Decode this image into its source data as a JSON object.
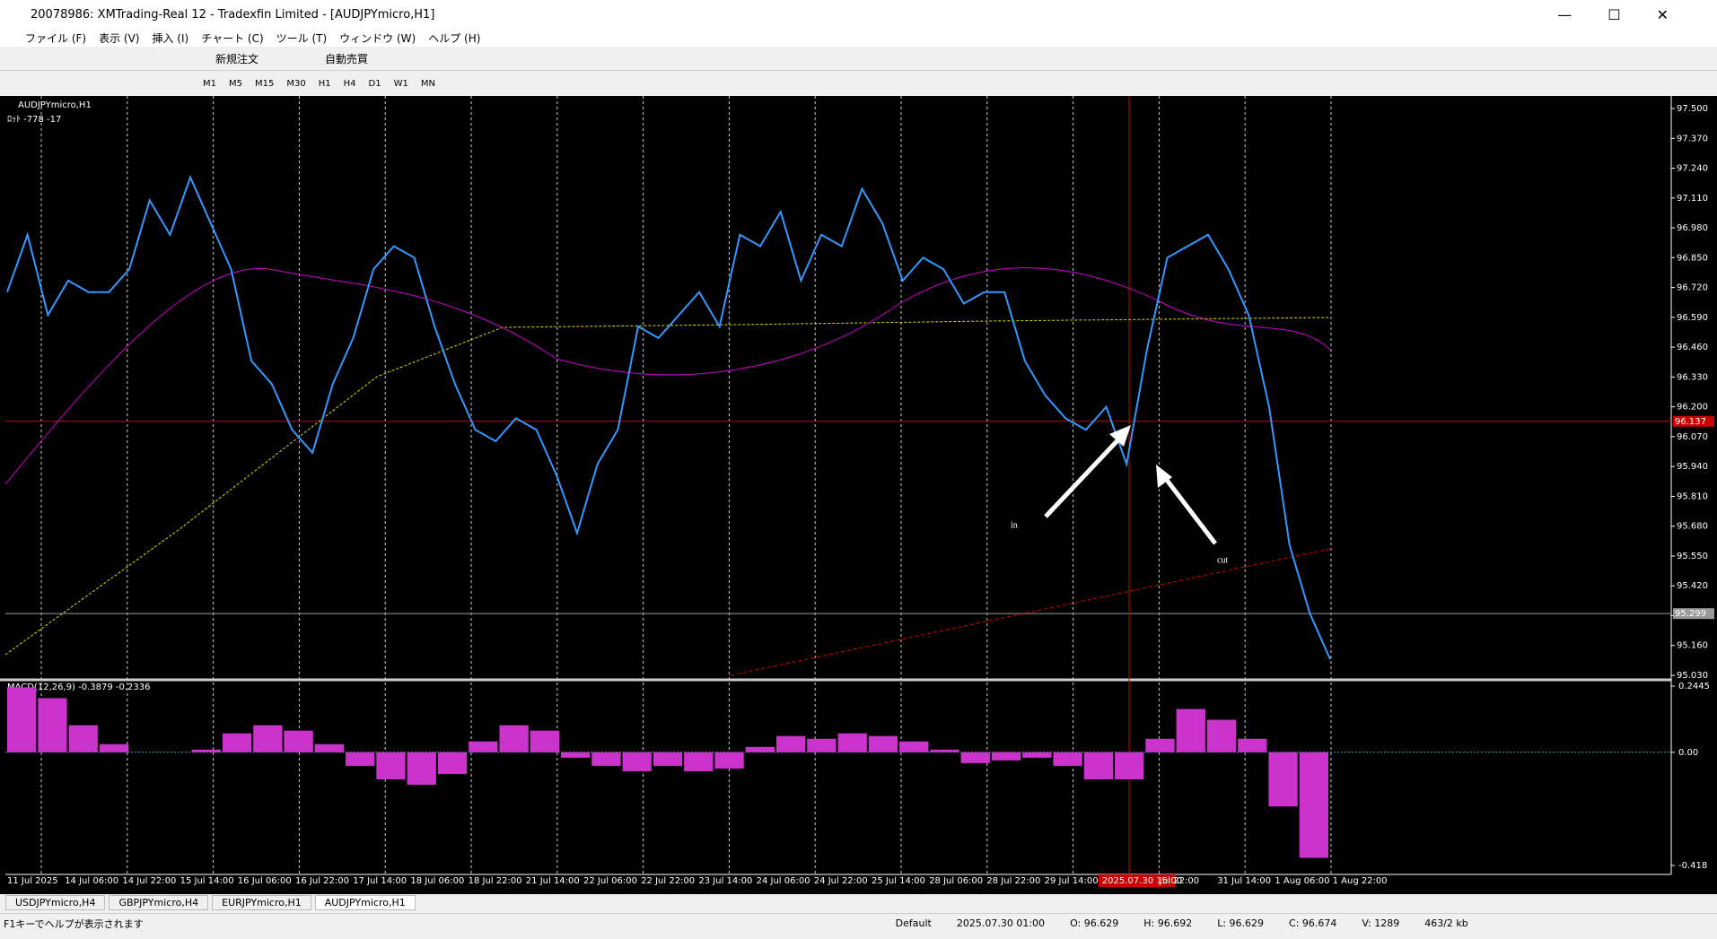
{
  "window": {
    "title": "20078986: XMTrading-Real 12 - Tradexfin Limited - [AUDJPYmicro,H1]"
  },
  "menu": [
    "ファイル (F)",
    "表示 (V)",
    "挿入 (I)",
    "チャート (C)",
    "ツール (T)",
    "ウィンドウ (W)",
    "ヘルプ (H)"
  ],
  "toolbar": {
    "order": "新規注文",
    "auto": "自動売買"
  },
  "timeframes": [
    "M1",
    "M5",
    "M15",
    "M30",
    "H1",
    "H4",
    "D1",
    "W1",
    "MN"
  ],
  "chart": {
    "symbol_label": "AUDJPYmicro,H1",
    "account_info": "ﾛｯﾄ -778 -17",
    "ylim": [
      95.03,
      97.5
    ],
    "yticks": [
      {
        "value": 97.5,
        "label": "97.500"
      },
      {
        "value": 97.37,
        "label": "97.370"
      },
      {
        "value": 97.24,
        "label": "97.240"
      },
      {
        "value": 97.11,
        "label": "97.110"
      },
      {
        "value": 96.98,
        "label": "96.980"
      },
      {
        "value": 96.85,
        "label": "96.850"
      },
      {
        "value": 96.72,
        "label": "96.720"
      },
      {
        "value": 96.59,
        "label": "96.590"
      },
      {
        "value": 96.46,
        "label": "96.460"
      },
      {
        "value": 96.33,
        "label": "96.330"
      },
      {
        "value": 96.2,
        "label": "96.200"
      },
      {
        "value": 96.07,
        "label": "96.070"
      },
      {
        "value": 95.94,
        "label": "95.940"
      },
      {
        "value": 95.81,
        "label": "95.810"
      },
      {
        "value": 95.68,
        "label": "95.680"
      },
      {
        "value": 95.55,
        "label": "95.550"
      },
      {
        "value": 95.42,
        "label": "95.420"
      },
      {
        "value": 95.29,
        "label": "95.290"
      },
      {
        "value": 95.16,
        "label": "95.160"
      },
      {
        "value": 95.03,
        "label": "95.030"
      }
    ],
    "close": [
      96.7,
      96.95,
      96.6,
      96.75,
      96.7,
      96.7,
      96.8,
      97.1,
      96.95,
      97.2,
      97.0,
      96.8,
      96.4,
      96.3,
      96.1,
      96.0,
      96.3,
      96.5,
      96.8,
      96.9,
      96.85,
      96.55,
      96.3,
      96.1,
      96.05,
      96.15,
      96.1,
      95.9,
      95.65,
      95.95,
      96.1,
      96.55,
      96.5,
      96.6,
      96.7,
      96.55,
      96.95,
      96.9,
      97.05,
      96.75,
      96.95,
      96.9,
      97.15,
      97.0,
      96.75,
      96.85,
      96.8,
      96.65,
      96.7,
      96.7,
      96.4,
      96.25,
      96.15,
      96.1,
      96.2,
      95.95,
      96.45,
      96.85,
      96.9,
      96.95,
      96.8,
      96.6,
      96.2,
      95.6,
      95.3,
      95.1
    ],
    "current_price": {
      "value": 96.137,
      "label": "96.137"
    },
    "level_line": {
      "value": 95.299,
      "label": "95.299"
    },
    "time_labels": [
      "11 Jul 2025",
      "14 Jul 06:00",
      "14 Jul 22:00",
      "15 Jul 14:00",
      "16 Jul 06:00",
      "16 Jul 22:00",
      "17 Jul 14:00",
      "18 Jul 06:00",
      "18 Jul 22:00",
      "21 Jul 14:00",
      "22 Jul 06:00",
      "22 Jul 22:00",
      "23 Jul 14:00",
      "24 Jul 06:00",
      "24 Jul 22:00",
      "25 Jul 14:00",
      "28 Jul 06:00",
      "28 Jul 22:00",
      "29 Jul 14:00",
      "2025.07.30 15:00",
      "Jul 22:00",
      "31 Jul 14:00",
      "1 Aug 06:00",
      "1 Aug 22:00"
    ],
    "annotations": [
      "in",
      "cut"
    ],
    "macd": {
      "label": "MACD(12,26,9) -0.3879 -0.2336",
      "ylim": [
        -0.418,
        0.2445
      ],
      "yticks": [
        0.2445,
        {
          "value": 0,
          "label": "0.00"
        },
        -0.418
      ],
      "values": [
        0.24,
        0.2,
        0.1,
        0.03,
        0,
        0,
        0.01,
        0.07,
        0.1,
        0.08,
        0.03,
        -0.05,
        -0.1,
        -0.12,
        -0.08,
        0.04,
        0.1,
        0.08,
        -0.02,
        -0.05,
        -0.07,
        -0.05,
        -0.07,
        -0.06,
        0.02,
        0.06,
        0.05,
        0.07,
        0.06,
        0.04,
        0.01,
        -0.04,
        -0.03,
        -0.02,
        -0.05,
        -0.1,
        -0.1,
        0.05,
        0.16,
        0.12,
        0.05,
        -0.2,
        -0.39
      ]
    }
  },
  "tabs": [
    "USDJPYmicro,H4",
    "GBPJPYmicro,H4",
    "EURJPYmicro,H1",
    "AUDJPYmicro,H1"
  ],
  "status": [
    "F1キーでヘルプが表示されます",
    "Default",
    "2025.07.30 01:00",
    "O: 96.629",
    "H: 96.692",
    "L: 96.629",
    "C: 96.674",
    "V: 1289",
    "463/2 kb"
  ]
}
